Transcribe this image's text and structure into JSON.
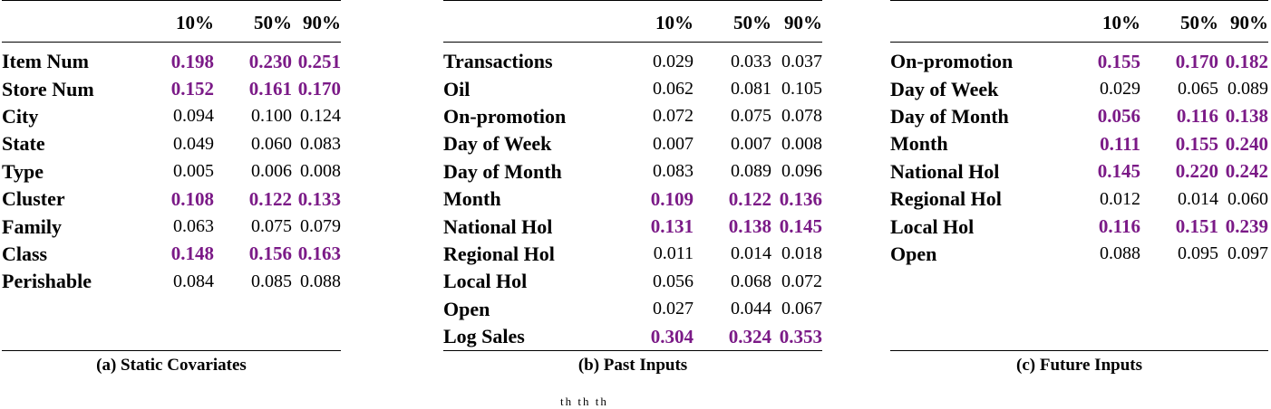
{
  "headers": [
    "10%",
    "50%",
    "90%"
  ],
  "tables": [
    {
      "caption": "(a) Static Covariates",
      "rows": [
        {
          "name": "Item Num",
          "v": [
            "0.198",
            "0.230",
            "0.251"
          ],
          "hi": true
        },
        {
          "name": "Store Num",
          "v": [
            "0.152",
            "0.161",
            "0.170"
          ],
          "hi": true
        },
        {
          "name": "City",
          "v": [
            "0.094",
            "0.100",
            "0.124"
          ],
          "hi": false
        },
        {
          "name": "State",
          "v": [
            "0.049",
            "0.060",
            "0.083"
          ],
          "hi": false
        },
        {
          "name": "Type",
          "v": [
            "0.005",
            "0.006",
            "0.008"
          ],
          "hi": false
        },
        {
          "name": "Cluster",
          "v": [
            "0.108",
            "0.122",
            "0.133"
          ],
          "hi": true
        },
        {
          "name": "Family",
          "v": [
            "0.063",
            "0.075",
            "0.079"
          ],
          "hi": false
        },
        {
          "name": "Class",
          "v": [
            "0.148",
            "0.156",
            "0.163"
          ],
          "hi": true
        },
        {
          "name": "Perishable",
          "v": [
            "0.084",
            "0.085",
            "0.088"
          ],
          "hi": false
        }
      ]
    },
    {
      "caption": "(b) Past Inputs",
      "rows": [
        {
          "name": "Transactions",
          "v": [
            "0.029",
            "0.033",
            "0.037"
          ],
          "hi": false
        },
        {
          "name": "Oil",
          "v": [
            "0.062",
            "0.081",
            "0.105"
          ],
          "hi": false
        },
        {
          "name": "On-promotion",
          "v": [
            "0.072",
            "0.075",
            "0.078"
          ],
          "hi": false
        },
        {
          "name": "Day of Week",
          "v": [
            "0.007",
            "0.007",
            "0.008"
          ],
          "hi": false
        },
        {
          "name": "Day of Month",
          "v": [
            "0.083",
            "0.089",
            "0.096"
          ],
          "hi": false
        },
        {
          "name": "Month",
          "v": [
            "0.109",
            "0.122",
            "0.136"
          ],
          "hi": true
        },
        {
          "name": "National Hol",
          "v": [
            "0.131",
            "0.138",
            "0.145"
          ],
          "hi": true
        },
        {
          "name": "Regional Hol",
          "v": [
            "0.011",
            "0.014",
            "0.018"
          ],
          "hi": false
        },
        {
          "name": "Local Hol",
          "v": [
            "0.056",
            "0.068",
            "0.072"
          ],
          "hi": false
        },
        {
          "name": "Open",
          "v": [
            "0.027",
            "0.044",
            "0.067"
          ],
          "hi": false
        },
        {
          "name": "Log Sales",
          "v": [
            "0.304",
            "0.324",
            "0.353"
          ],
          "hi": true
        }
      ]
    },
    {
      "caption": "(c) Future Inputs",
      "rows": [
        {
          "name": "On-promotion",
          "v": [
            "0.155",
            "0.170",
            "0.182"
          ],
          "hi": true
        },
        {
          "name": "Day of Week",
          "v": [
            "0.029",
            "0.065",
            "0.089"
          ],
          "hi": false
        },
        {
          "name": "Day of Month",
          "v": [
            "0.056",
            "0.116",
            "0.138"
          ],
          "hi": true
        },
        {
          "name": "Month",
          "v": [
            "0.111",
            "0.155",
            "0.240"
          ],
          "hi": true
        },
        {
          "name": "National Hol",
          "v": [
            "0.145",
            "0.220",
            "0.242"
          ],
          "hi": true
        },
        {
          "name": "Regional Hol",
          "v": [
            "0.012",
            "0.014",
            "0.060"
          ],
          "hi": false
        },
        {
          "name": "Local Hol",
          "v": [
            "0.116",
            "0.151",
            "0.239"
          ],
          "hi": true
        },
        {
          "name": "Open",
          "v": [
            "0.088",
            "0.095",
            "0.097"
          ],
          "hi": false
        }
      ]
    }
  ],
  "footer_fragment": "th th th",
  "highlight_color": "#7B1A87"
}
